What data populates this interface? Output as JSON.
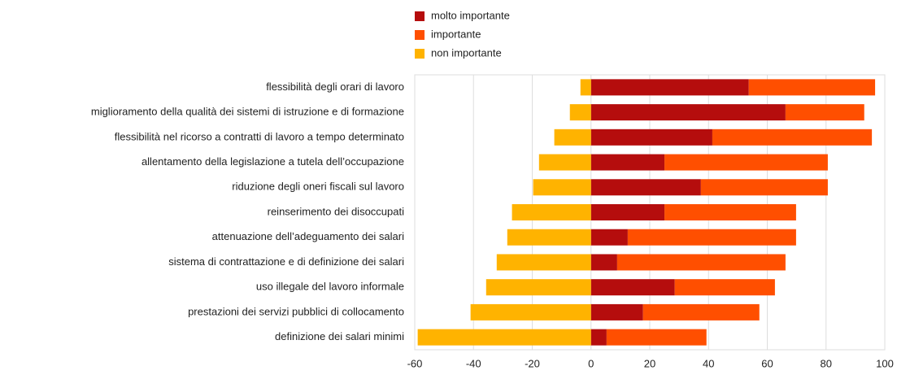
{
  "chart_data": {
    "type": "stacked-barh",
    "categories": [
      "flessibilità degli orari di lavoro",
      "miglioramento della qualità dei sistemi di istruzione e di formazione",
      "flessibilità nel ricorso a contratti di lavoro a tempo determinato",
      "allentamento della legislazione a tutela dell’occupazione",
      "riduzione degli oneri fiscali sul lavoro",
      "reinserimento dei disoccupati",
      "attenuazione dell’adeguamento dei salari",
      "sistema di contrattazione e di definizione dei salari",
      "uso illegale del lavoro informale",
      "prestazioni dei servizi pubblici di collocamento",
      "definizione dei salari minimi"
    ],
    "series": [
      {
        "name": "molto importante",
        "color": "#b50d0d",
        "values": [
          53.7,
          66.2,
          41.3,
          25,
          37.4,
          25,
          12.5,
          8.9,
          28.5,
          17.7,
          5.3
        ]
      },
      {
        "name": "importante",
        "color": "#ff4f00",
        "values": [
          43,
          26.8,
          54.3,
          55.6,
          43.2,
          44.8,
          57.3,
          57.3,
          34.1,
          39.6,
          34
        ]
      },
      {
        "name": "non importante",
        "color": "#ffb300",
        "values": [
          -3.6,
          -7.2,
          -12.5,
          -17.7,
          -19.7,
          -26.9,
          -28.5,
          -32.1,
          -35.7,
          -41,
          -59
        ]
      }
    ],
    "xlim": [
      -60,
      100
    ],
    "xticks": [
      -60,
      -40,
      -20,
      0,
      20,
      40,
      60,
      80,
      100
    ],
    "grid": true,
    "legend": "top"
  }
}
